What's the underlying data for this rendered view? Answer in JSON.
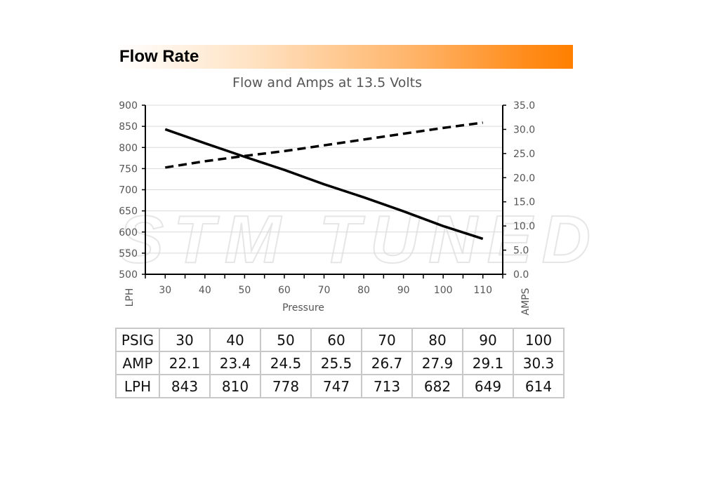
{
  "banner": {
    "title": "Flow Rate"
  },
  "watermark": {
    "text": "STM TUNED"
  },
  "chart_data": {
    "type": "line",
    "title": "Flow and Amps at 13.5 Volts",
    "xlabel": "Pressure",
    "ylabel": "LPH",
    "y2label": "AMPS",
    "x": [
      30,
      40,
      50,
      60,
      70,
      80,
      90,
      100,
      110
    ],
    "x_ticks": [
      "30",
      "40",
      "50",
      "60",
      "70",
      "80",
      "90",
      "100",
      "110"
    ],
    "ylim": [
      500,
      900
    ],
    "y_ticks": [
      "500",
      "550",
      "600",
      "650",
      "700",
      "750",
      "800",
      "850",
      "900"
    ],
    "y2lim": [
      0,
      35
    ],
    "y2_ticks": [
      "0.0",
      "5.0",
      "10.0",
      "15.0",
      "20.0",
      "25.0",
      "30.0",
      "35.0"
    ],
    "grid": true,
    "series": [
      {
        "axis": "left",
        "style": "solid",
        "color": "#000000",
        "values": [
          843,
          810,
          778,
          747,
          713,
          682,
          649,
          614,
          584
        ]
      },
      {
        "axis": "right",
        "style": "dashed",
        "color": "#000000",
        "values": [
          22.1,
          23.4,
          24.5,
          25.5,
          26.7,
          27.9,
          29.1,
          30.3,
          31.4
        ]
      }
    ]
  },
  "table": {
    "rows": [
      {
        "label": "PSIG",
        "cells": [
          "30",
          "40",
          "50",
          "60",
          "70",
          "80",
          "90",
          "100"
        ]
      },
      {
        "label": "AMP",
        "cells": [
          "22.1",
          "23.4",
          "24.5",
          "25.5",
          "26.7",
          "27.9",
          "29.1",
          "30.3"
        ]
      },
      {
        "label": "LPH",
        "cells": [
          "843",
          "810",
          "778",
          "747",
          "713",
          "682",
          "649",
          "614"
        ]
      }
    ]
  }
}
